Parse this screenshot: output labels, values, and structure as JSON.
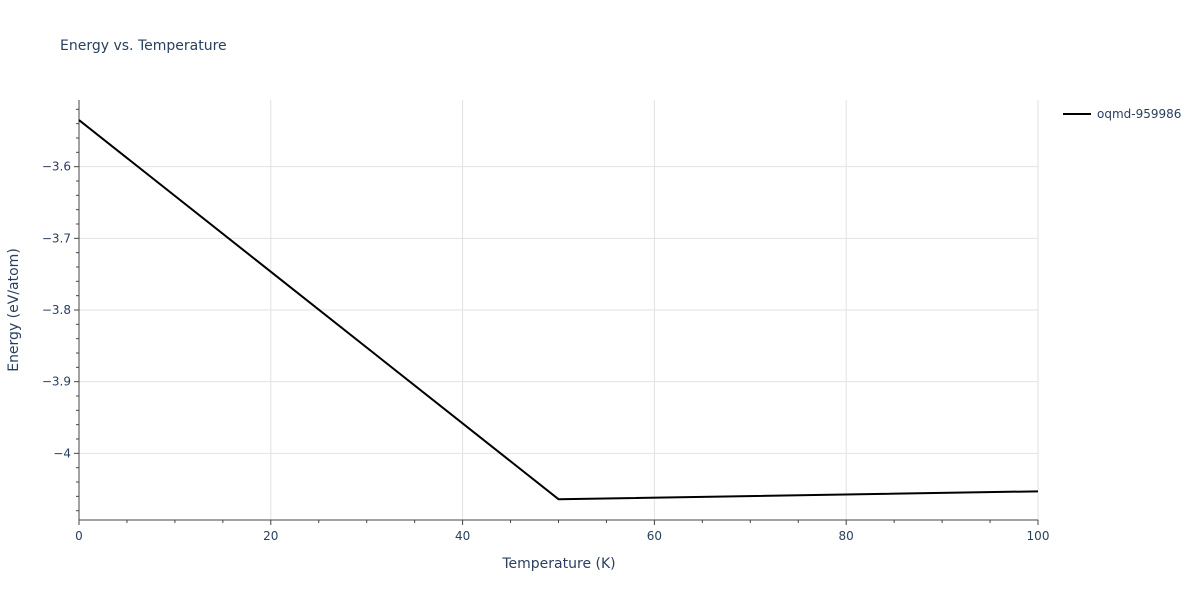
{
  "chart_data": {
    "type": "line",
    "title": "Energy vs. Temperature",
    "xlabel": "Temperature (K)",
    "ylabel": "Energy (eV/atom)",
    "xlim": [
      0,
      100
    ],
    "ylim": [
      -4.093,
      -3.507
    ],
    "x_ticks": [
      0,
      20,
      40,
      60,
      80,
      100
    ],
    "x_tick_labels": [
      "0",
      "20",
      "40",
      "60",
      "80",
      "100"
    ],
    "y_ticks": [
      -3.6,
      -3.7,
      -3.8,
      -3.9,
      -4.0
    ],
    "y_tick_labels": [
      "−3.6",
      "−3.7",
      "−3.8",
      "−3.9",
      "−4"
    ],
    "grid": true,
    "legend_position": "top-right",
    "series": [
      {
        "name": "oqmd-959986",
        "color": "#000000",
        "x": [
          0,
          50,
          100
        ],
        "y": [
          -3.535,
          -4.064,
          -4.053
        ]
      }
    ]
  }
}
